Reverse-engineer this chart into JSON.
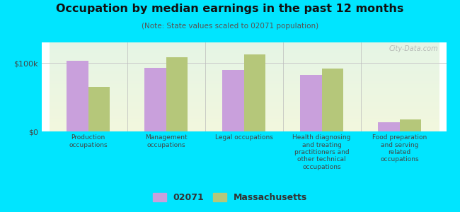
{
  "title": "Occupation by median earnings in the past 12 months",
  "subtitle": "(Note: State values scaled to 02071 population)",
  "categories": [
    "Production\noccupations",
    "Management\noccupations",
    "Legal occupations",
    "Health diagnosing\nand treating\npractitioners and\nother technical\noccupations",
    "Food preparation\nand serving\nrelated\noccupations"
  ],
  "values_02071": [
    103000,
    93000,
    90000,
    83000,
    13000
  ],
  "values_mass": [
    65000,
    108000,
    112000,
    92000,
    18000
  ],
  "color_02071": "#c9a0dc",
  "color_mass": "#b5c77a",
  "background_color": "#00e5ff",
  "ylabel_ticks": [
    "$0",
    "$100k"
  ],
  "ytick_vals": [
    0,
    100000
  ],
  "ylim": [
    0,
    130000
  ],
  "legend_02071": "02071",
  "legend_mass": "Massachusetts",
  "watermark": "City-Data.com"
}
